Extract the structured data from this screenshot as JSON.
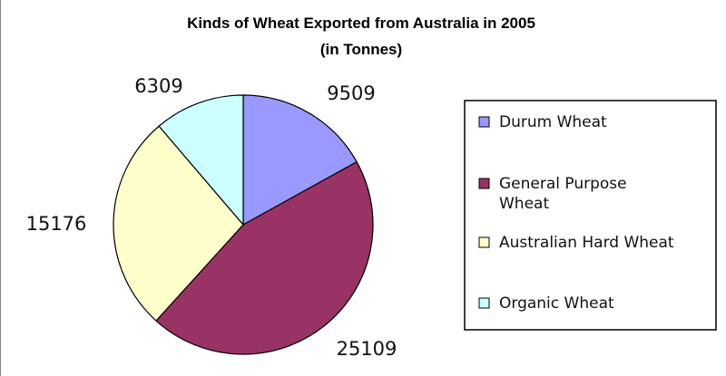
{
  "chart_data": {
    "type": "pie",
    "title": "Kinds of Wheat Exported from Australia in 2005",
    "subtitle": "(in Tonnes)",
    "legend_position": "right",
    "slices": [
      {
        "label": "Durum Wheat",
        "legend_lines": [
          "Durum Wheat"
        ],
        "value": 9509,
        "value_label": "9509",
        "color": "#9999ff"
      },
      {
        "label": "General Purpose Wheat",
        "legend_lines": [
          "General Purpose",
          "Wheat"
        ],
        "value": 25109,
        "value_label": "25109",
        "color": "#993366"
      },
      {
        "label": "Australian Hard Wheat",
        "legend_lines": [
          "Australian Hard Wheat"
        ],
        "value": 15176,
        "value_label": "15176",
        "color": "#ffffcc"
      },
      {
        "label": "Organic Wheat",
        "legend_lines": [
          "Organic Wheat"
        ],
        "value": 6309,
        "value_label": "6309",
        "color": "#ccffff"
      }
    ]
  }
}
